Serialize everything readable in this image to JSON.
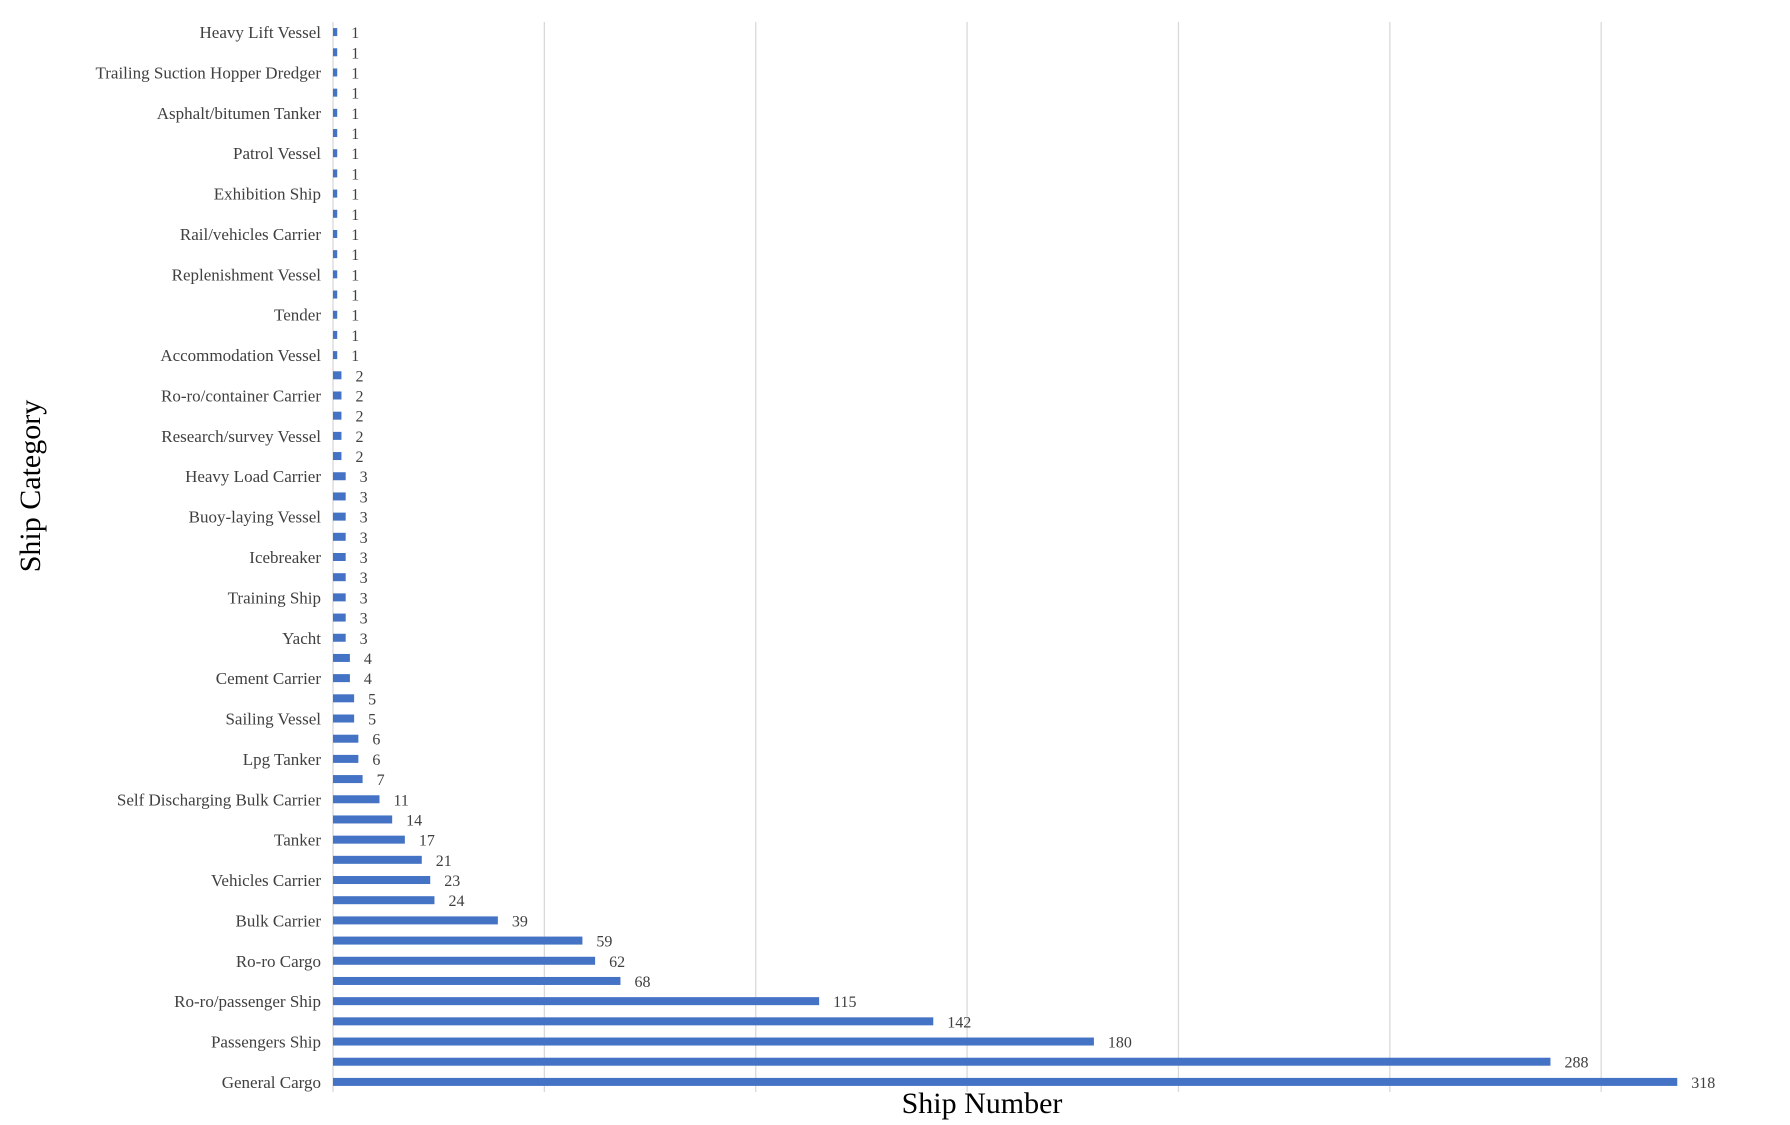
{
  "chart_data": {
    "type": "bar",
    "orientation": "horizontal",
    "xlabel": "Ship Number",
    "ylabel": "Ship Category",
    "xlim": [
      0,
      330
    ],
    "grid": "vertical lines",
    "legend": "none",
    "bar_color": "#4472C4",
    "grid_color": "#D9D9D9",
    "categories": [
      "Heavy Lift Vessel",
      "",
      "Trailing Suction Hopper Dredger",
      "",
      "Asphalt/bitumen Tanker",
      "",
      "Patrol Vessel",
      "",
      "Exhibition Ship",
      "",
      "Rail/vehicles Carrier",
      "",
      "Replenishment Vessel",
      "",
      "Tender",
      "",
      "Accommodation Vessel",
      "",
      "Ro-ro/container Carrier",
      "",
      "Research/survey Vessel",
      "",
      "Heavy Load Carrier",
      "",
      "Buoy-laying Vessel",
      "",
      "Icebreaker",
      "",
      "Training Ship",
      "",
      "Yacht",
      "",
      "Cement Carrier",
      "",
      "Sailing Vessel",
      "",
      "Lpg Tanker",
      "",
      "Self Discharging Bulk Carrier",
      "",
      "Tanker",
      "",
      "Vehicles Carrier",
      "",
      "Bulk Carrier",
      "",
      "Ro-ro Cargo",
      "",
      "Ro-ro/passenger Ship",
      "",
      "Passengers Ship",
      "",
      "General Cargo"
    ],
    "values": [
      1,
      1,
      1,
      1,
      1,
      1,
      1,
      1,
      1,
      1,
      1,
      1,
      1,
      1,
      1,
      1,
      1,
      2,
      2,
      2,
      2,
      2,
      3,
      3,
      3,
      3,
      3,
      3,
      3,
      3,
      3,
      4,
      4,
      5,
      5,
      6,
      6,
      7,
      11,
      14,
      17,
      21,
      23,
      24,
      39,
      59,
      62,
      68,
      115,
      142,
      180,
      288,
      318
    ]
  }
}
